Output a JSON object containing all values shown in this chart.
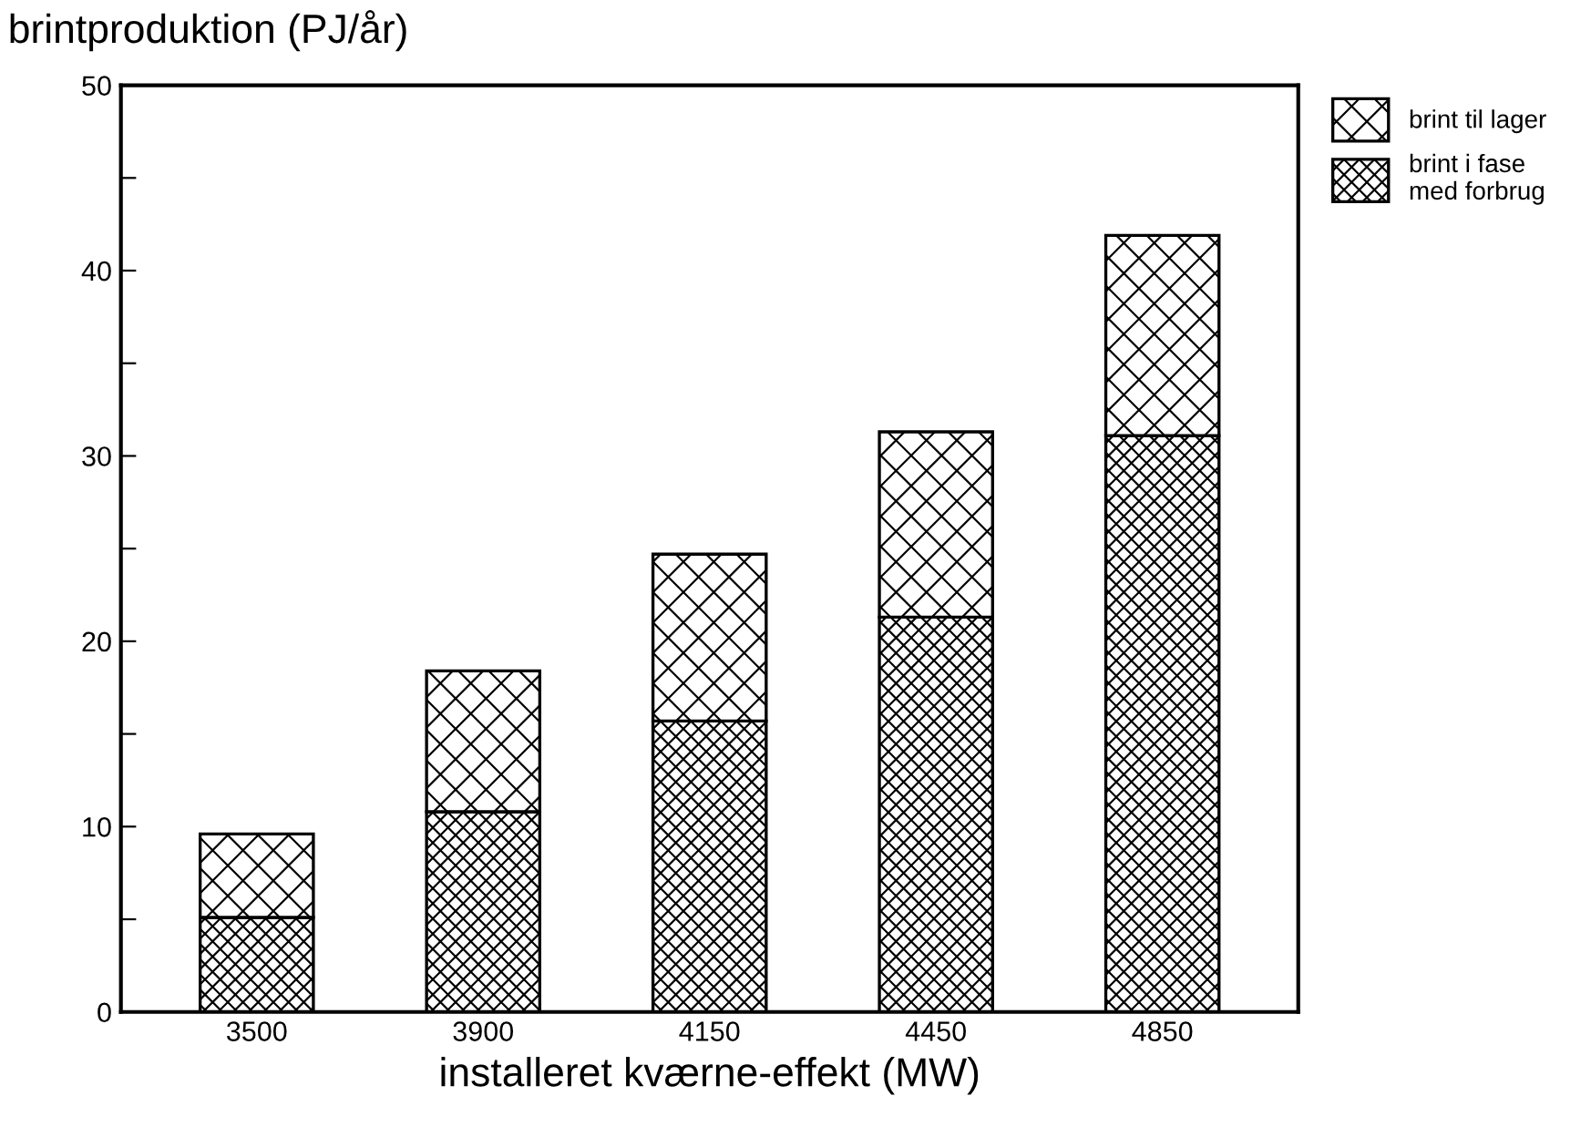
{
  "chart_data": {
    "type": "bar",
    "stacked": true,
    "title": "brintproduktion (PJ/år)",
    "xlabel": "installeret kværne-effekt (MW)",
    "categories": [
      "3500",
      "3900",
      "4150",
      "4450",
      "4850"
    ],
    "series": [
      {
        "name": "brint i fase\nmed forbrug",
        "color": "#000000",
        "values": [
          5.1,
          10.8,
          15.7,
          21.3,
          31.1
        ]
      },
      {
        "name": "brint til lager",
        "color": "#000000",
        "values": [
          4.5,
          7.6,
          9.0,
          10.0,
          10.8
        ]
      }
    ],
    "ylim": [
      0,
      50
    ],
    "yticks": [
      0,
      {
        "value": 5,
        "label": null
      },
      10,
      {
        "value": 15,
        "label": null
      },
      20,
      {
        "value": 25,
        "label": null
      },
      30,
      {
        "value": 35,
        "label": null
      },
      40,
      {
        "value": 45,
        "label": null
      },
      50
    ],
    "grid": false,
    "legend": "top right"
  }
}
